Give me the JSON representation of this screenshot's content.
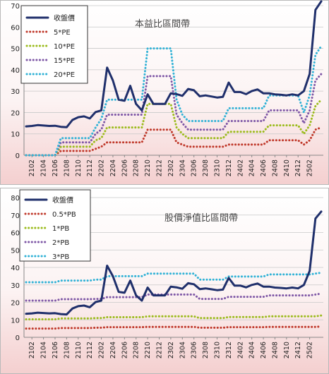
{
  "charts": [
    {
      "title": "本益比區間帶",
      "chart_data": {
        "type": "line",
        "title": "本益比區間帶",
        "xlabel": "",
        "ylabel": "",
        "ylim": [
          0,
          70
        ],
        "yticks": [
          0,
          10,
          20,
          30,
          40,
          50,
          60,
          70
        ],
        "grid": true,
        "legend": "top-left",
        "x_tick_labels": [
          "2102",
          "2104",
          "2106",
          "2108",
          "2110",
          "2112",
          "2202",
          "2204",
          "2206",
          "2208",
          "2210",
          "2212",
          "2302",
          "2304",
          "2306",
          "2308",
          "2310",
          "2312",
          "2402",
          "2404",
          "2406",
          "2408",
          "2410",
          "2412",
          "2502"
        ],
        "series": [
          {
            "name": "收盤價",
            "style": "solid",
            "color": "#1f2f6b",
            "values": [
              13.5,
              13.7,
              14.1,
              13.9,
              13.7,
              13.8,
              13.3,
              13.1,
              16.5,
              17.8,
              18.2,
              17.2,
              20.2,
              21,
              41,
              35,
              26,
              25.5,
              32.5,
              24,
              21,
              28.5,
              24,
              24,
              24,
              29,
              28.6,
              27.8,
              31,
              30.4,
              27.6,
              28,
              27.5,
              27,
              27.3,
              34,
              29.6,
              29.6,
              28.6,
              30,
              30.8,
              29,
              29,
              28.5,
              28.3,
              28,
              28.5,
              28,
              30,
              38,
              68,
              72
            ]
          },
          {
            "name": "5*PE",
            "style": "dotted",
            "color": "#c0392b",
            "values": [
              0,
              0,
              0,
              0,
              0,
              0,
              2,
              2,
              2,
              2,
              2,
              2,
              3,
              4,
              6,
              6,
              6,
              6,
              6,
              6,
              6,
              12,
              12,
              12,
              12,
              12,
              6,
              5,
              4,
              4,
              4,
              4,
              4,
              4,
              4,
              5,
              5,
              5,
              5,
              5,
              5,
              5,
              7,
              7,
              7,
              7,
              7,
              7,
              5,
              7,
              12,
              13
            ]
          },
          {
            "name": "10*PE",
            "style": "dotted",
            "color": "#9bbb1c",
            "values": [
              0,
              0,
              0,
              0,
              0,
              0,
              4,
              4,
              4,
              4,
              4,
              4,
              7,
              8,
              13,
              13,
              13,
              13,
              13,
              13,
              13,
              24,
              24,
              24,
              24,
              24,
              13,
              10,
              8,
              8,
              8,
              8,
              8,
              8,
              8,
              11,
              11,
              11,
              11,
              11,
              11,
              11,
              14,
              14,
              14,
              14,
              14,
              14,
              10,
              14,
              23,
              26
            ]
          },
          {
            "name": "15*PE",
            "style": "dotted",
            "color": "#7e57a6",
            "values": [
              0,
              0,
              0,
              0,
              0,
              0,
              6,
              6,
              6,
              6,
              6,
              6,
              10,
              12,
              19,
              19,
              19,
              19,
              19,
              19,
              19,
              37,
              37,
              37,
              37,
              37,
              19,
              15,
              12,
              12,
              12,
              12,
              12,
              12,
              12,
              16,
              16,
              16,
              16,
              16,
              16,
              16,
              21,
              21,
              21,
              21,
              21,
              21,
              15,
              21,
              35,
              38
            ]
          },
          {
            "name": "20*PE",
            "style": "dotted",
            "color": "#31b2d6",
            "values": [
              0,
              0,
              0,
              0,
              0,
              0,
              8,
              8,
              8,
              8,
              8,
              8,
              13,
              17,
              26,
              26,
              26,
              26,
              26,
              26,
              26,
              50,
              50,
              50,
              50,
              50,
              26,
              19,
              16,
              16,
              16,
              16,
              16,
              16,
              16,
              22,
              22,
              22,
              22,
              22,
              22,
              22,
              28,
              28,
              28,
              28,
              28,
              28,
              20,
              28,
              47,
              51
            ]
          }
        ]
      }
    },
    {
      "title": "股價淨值比區間帶",
      "chart_data": {
        "type": "line",
        "title": "股價淨值比區間帶",
        "xlabel": "",
        "ylabel": "",
        "ylim": [
          0,
          80
        ],
        "yticks": [
          0,
          10,
          20,
          30,
          40,
          50,
          60,
          70,
          80
        ],
        "grid": true,
        "legend": "top-left",
        "x_tick_labels": [
          "2102",
          "2104",
          "2106",
          "2108",
          "2110",
          "2112",
          "2202",
          "2204",
          "2206",
          "2208",
          "2210",
          "2212",
          "2302",
          "2304",
          "2306",
          "2308",
          "2310",
          "2312",
          "2402",
          "2404",
          "2406",
          "2408",
          "2410",
          "2412",
          "2502"
        ],
        "series": [
          {
            "name": "收盤價",
            "style": "solid",
            "color": "#1f2f6b",
            "values": [
              13.5,
              13.7,
              14.1,
              13.9,
              13.7,
              13.8,
              13.3,
              13.1,
              16.5,
              17.8,
              18.2,
              17.2,
              20.2,
              21,
              41,
              35,
              26,
              25.5,
              32.5,
              24,
              21,
              28.5,
              24,
              24,
              24,
              29,
              28.6,
              27.8,
              31,
              30.4,
              27.6,
              28,
              27.5,
              27,
              27.3,
              34,
              29.6,
              29.6,
              28.6,
              30,
              30.8,
              29,
              29,
              28.5,
              28.3,
              28,
              28.5,
              28,
              30,
              38,
              68,
              72
            ]
          },
          {
            "name": "0.5*PB",
            "style": "dotted",
            "color": "#c0392b",
            "values": [
              5,
              5,
              5,
              5,
              5,
              5,
              5.3,
              5.3,
              5.3,
              5.3,
              5.3,
              5.3,
              5.5,
              5.5,
              5.8,
              5.8,
              5.8,
              5.8,
              5.8,
              5.8,
              5.8,
              6,
              6,
              6,
              6,
              6,
              6,
              6,
              6,
              6,
              5.5,
              5.5,
              5.5,
              5.5,
              5.5,
              5.8,
              5.8,
              5.8,
              5.8,
              5.8,
              5.8,
              5.8,
              6,
              6,
              6,
              6,
              6,
              6,
              6,
              6,
              6,
              6.2
            ]
          },
          {
            "name": "1*PB",
            "style": "dotted",
            "color": "#9bbb1c",
            "values": [
              10.3,
              10.3,
              10.3,
              10.3,
              10.3,
              10.3,
              10.8,
              10.8,
              10.8,
              10.8,
              10.8,
              10.8,
              11,
              11,
              11.5,
              11.5,
              11.5,
              11.5,
              11.5,
              11.5,
              11.5,
              12,
              12,
              12,
              12,
              12,
              12,
              12,
              12,
              12,
              11,
              11,
              11,
              11,
              11,
              11.6,
              11.6,
              11.6,
              11.6,
              11.6,
              11.6,
              11.6,
              12,
              12,
              12,
              12,
              12,
              12,
              12,
              12,
              12,
              12.5
            ]
          },
          {
            "name": "2*PB",
            "style": "dotted",
            "color": "#7e57a6",
            "values": [
              21,
              21,
              21,
              21,
              21,
              21,
              21.8,
              21.8,
              21.8,
              21.8,
              21.8,
              21.8,
              22,
              22,
              23,
              23,
              23,
              23,
              23,
              23,
              23,
              24.5,
              24.5,
              24.5,
              24.5,
              24.5,
              24.5,
              24.5,
              24.5,
              24.5,
              22,
              22,
              22,
              22,
              22,
              23.2,
              23.2,
              23.2,
              23.2,
              23.2,
              23.2,
              23.2,
              24,
              24,
              24,
              24,
              24,
              24,
              24,
              24,
              24.5,
              25
            ]
          },
          {
            "name": "3*PB",
            "style": "dotted",
            "color": "#31b2d6",
            "values": [
              31.5,
              31.5,
              31.5,
              31.5,
              31.5,
              31.5,
              32.5,
              32.5,
              32.5,
              32.5,
              32.5,
              32.5,
              33,
              33,
              35,
              35,
              35,
              35,
              35,
              35,
              35,
              36.5,
              36.5,
              36.5,
              36.5,
              36.5,
              36.5,
              36.5,
              36.5,
              36.5,
              33,
              33,
              33,
              33,
              33,
              34.8,
              34.8,
              34.8,
              34.8,
              34.8,
              34.8,
              34.8,
              36,
              36,
              36,
              36,
              36,
              36,
              36,
              36,
              36.5,
              37
            ]
          }
        ]
      }
    }
  ]
}
